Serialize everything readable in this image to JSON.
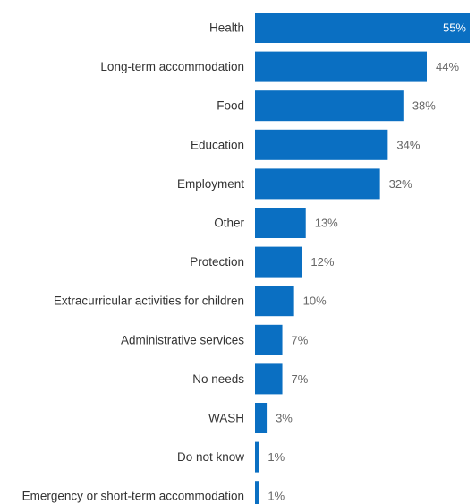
{
  "chart_data": {
    "type": "bar",
    "orientation": "horizontal",
    "categories": [
      "Health",
      "Long-term accommodation",
      "Food",
      "Education",
      "Employment",
      "Other",
      "Protection",
      "Extracurricular activities for children",
      "Administrative services",
      "No needs",
      "WASH",
      "Do not know",
      "Emergency or short-term accommodation"
    ],
    "values": [
      55,
      44,
      38,
      34,
      32,
      13,
      12,
      10,
      7,
      7,
      3,
      1,
      1
    ],
    "value_labels": [
      "55%",
      "44%",
      "38%",
      "34%",
      "32%",
      "13%",
      "12%",
      "10%",
      "7%",
      "7%",
      "3%",
      "1%",
      "1%"
    ],
    "unit": "%",
    "xlim": [
      0,
      55
    ],
    "bar_color": "#0a6fc2",
    "inside_label_color": "#ffffff",
    "outside_label_color": "#666666",
    "category_label_color": "#333333",
    "grid": false,
    "legend": "none"
  }
}
